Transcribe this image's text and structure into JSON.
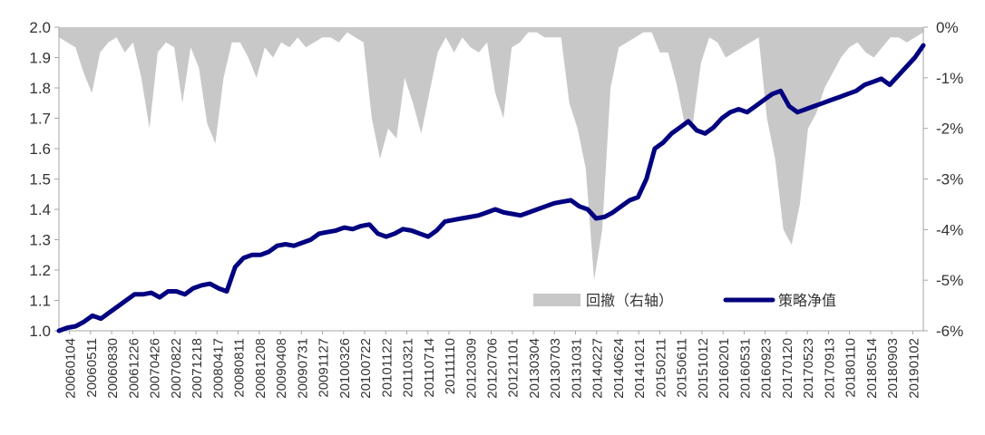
{
  "chart_data": {
    "type": "line",
    "title": "",
    "xlabel": "",
    "ylabel": "",
    "y_left": {
      "lim": [
        1.0,
        2.0
      ],
      "ticks": [
        "1.0",
        "1.1",
        "1.2",
        "1.3",
        "1.4",
        "1.5",
        "1.6",
        "1.7",
        "1.8",
        "1.9",
        "2.0"
      ]
    },
    "y_right": {
      "lim": [
        -6,
        0
      ],
      "unit": "%",
      "ticks": [
        "0%",
        "-1%",
        "-2%",
        "-3%",
        "-4%",
        "-5%",
        "-6%"
      ]
    },
    "x_tick_labels": [
      "20060104",
      "20060511",
      "20060830",
      "20061226",
      "20070426",
      "20070822",
      "20071218",
      "20080417",
      "20080811",
      "20081208",
      "20090408",
      "20090731",
      "20091127",
      "20100326",
      "20100722",
      "20101122",
      "20110321",
      "20110714",
      "20111110",
      "20120309",
      "20120706",
      "20121101",
      "20130304",
      "20130703",
      "20131031",
      "20140227",
      "20140624",
      "20141021",
      "20150211",
      "20150611",
      "20151012",
      "20160201",
      "20160531",
      "20160923",
      "20170120",
      "20170523",
      "20170913",
      "20180110",
      "20180514",
      "20180903",
      "20190102"
    ],
    "grid": false,
    "legend_position": "bottom-right",
    "legend": {
      "drawdown": "回撤（右轴）",
      "nav": "策略净值"
    },
    "colors": {
      "nav": "#000080",
      "drawdown": "#c8c8c8",
      "axis": "#a6a6a6"
    },
    "series": [
      {
        "name": "策略净值",
        "kind": "line",
        "axis": "left",
        "values": [
          1.0,
          1.01,
          1.015,
          1.03,
          1.05,
          1.04,
          1.06,
          1.08,
          1.1,
          1.12,
          1.12,
          1.125,
          1.11,
          1.13,
          1.13,
          1.12,
          1.14,
          1.15,
          1.155,
          1.14,
          1.13,
          1.21,
          1.24,
          1.25,
          1.25,
          1.26,
          1.28,
          1.285,
          1.28,
          1.29,
          1.3,
          1.32,
          1.325,
          1.33,
          1.34,
          1.335,
          1.345,
          1.35,
          1.32,
          1.31,
          1.32,
          1.335,
          1.33,
          1.32,
          1.31,
          1.33,
          1.36,
          1.365,
          1.37,
          1.375,
          1.38,
          1.39,
          1.4,
          1.39,
          1.385,
          1.38,
          1.39,
          1.4,
          1.41,
          1.42,
          1.425,
          1.43,
          1.41,
          1.4,
          1.37,
          1.375,
          1.39,
          1.41,
          1.43,
          1.44,
          1.5,
          1.6,
          1.62,
          1.65,
          1.67,
          1.69,
          1.66,
          1.65,
          1.67,
          1.7,
          1.72,
          1.73,
          1.72,
          1.74,
          1.76,
          1.78,
          1.79,
          1.74,
          1.72,
          1.73,
          1.74,
          1.75,
          1.76,
          1.77,
          1.78,
          1.79,
          1.81,
          1.82,
          1.83,
          1.81,
          1.84,
          1.87,
          1.9,
          1.94
        ]
      },
      {
        "name": "回撤（右轴）",
        "kind": "area",
        "axis": "right",
        "values": [
          -0.2,
          -0.3,
          -0.4,
          -0.9,
          -1.3,
          -0.5,
          -0.3,
          -0.2,
          -0.5,
          -0.3,
          -1.0,
          -2.0,
          -0.5,
          -0.3,
          -0.4,
          -1.5,
          -0.4,
          -0.8,
          -1.9,
          -2.3,
          -1.0,
          -0.3,
          -0.3,
          -0.6,
          -1.0,
          -0.4,
          -0.6,
          -0.3,
          -0.4,
          -0.2,
          -0.4,
          -0.3,
          -0.2,
          -0.2,
          -0.3,
          -0.1,
          -0.2,
          -0.3,
          -1.8,
          -2.6,
          -2.0,
          -2.2,
          -1.0,
          -1.5,
          -2.1,
          -1.3,
          -0.5,
          -0.2,
          -0.5,
          -0.2,
          -0.4,
          -0.5,
          -0.3,
          -1.3,
          -1.8,
          -0.4,
          -0.3,
          -0.1,
          -0.1,
          -0.2,
          -0.2,
          -0.2,
          -1.5,
          -2.0,
          -2.8,
          -5.0,
          -4.0,
          -1.2,
          -0.4,
          -0.3,
          -0.2,
          -0.1,
          -0.1,
          -0.5,
          -0.5,
          -1.1,
          -1.9,
          -1.9,
          -0.7,
          -0.2,
          -0.3,
          -0.6,
          -0.5,
          -0.4,
          -0.3,
          -0.2,
          -1.8,
          -2.6,
          -4.0,
          -4.3,
          -3.5,
          -2.0,
          -1.7,
          -1.2,
          -0.9,
          -0.6,
          -0.4,
          -0.3,
          -0.5,
          -0.6,
          -0.4,
          -0.2,
          -0.2,
          -0.3,
          -0.2,
          -0.1
        ]
      }
    ]
  }
}
